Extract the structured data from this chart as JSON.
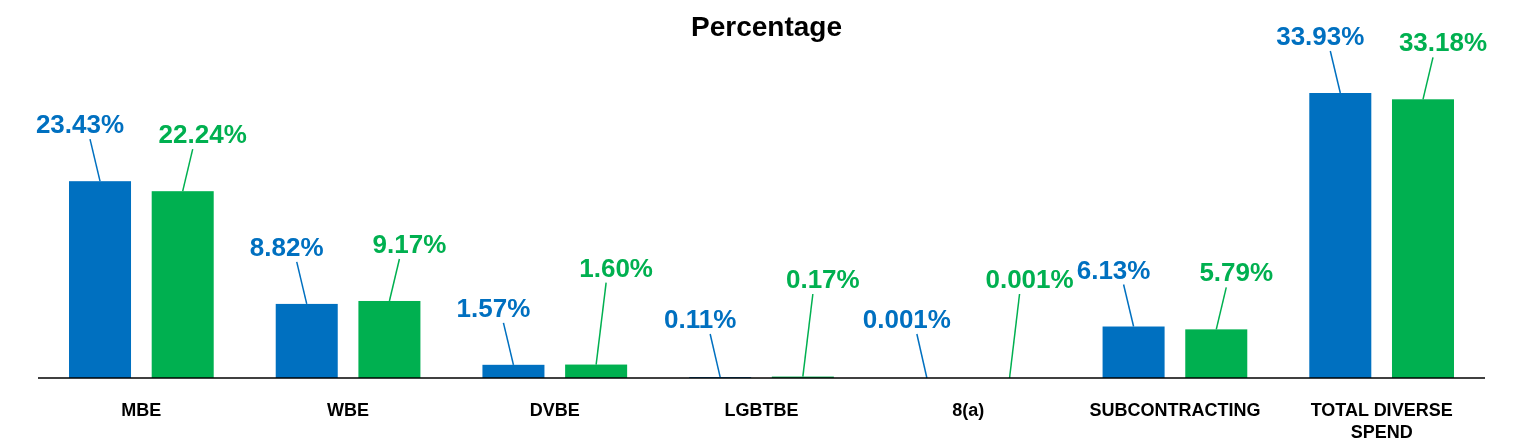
{
  "chart_data": {
    "type": "bar",
    "title": "Percentage",
    "categories": [
      "MBE",
      "WBE",
      "DVBE",
      "LGBTBE",
      "8(a)",
      "SUBCONTRACTING",
      "TOTAL DIVERSE SPEND"
    ],
    "series": [
      {
        "color": "#0070c0",
        "values": [
          23.43,
          8.82,
          1.57,
          0.11,
          0.001,
          6.13,
          33.93
        ],
        "value_labels": [
          "23.43%",
          "8.82%",
          "1.57%",
          "0.11%",
          "0.001%",
          "6.13%",
          "33.93%"
        ]
      },
      {
        "color": "#00b050",
        "values": [
          22.24,
          9.17,
          1.6,
          0.17,
          0.001,
          5.79,
          33.18
        ],
        "value_labels": [
          "22.24%",
          "9.17%",
          "1.60%",
          "0.17%",
          "0.001%",
          "5.79%",
          "33.18%"
        ]
      }
    ],
    "data_labels": false
  }
}
